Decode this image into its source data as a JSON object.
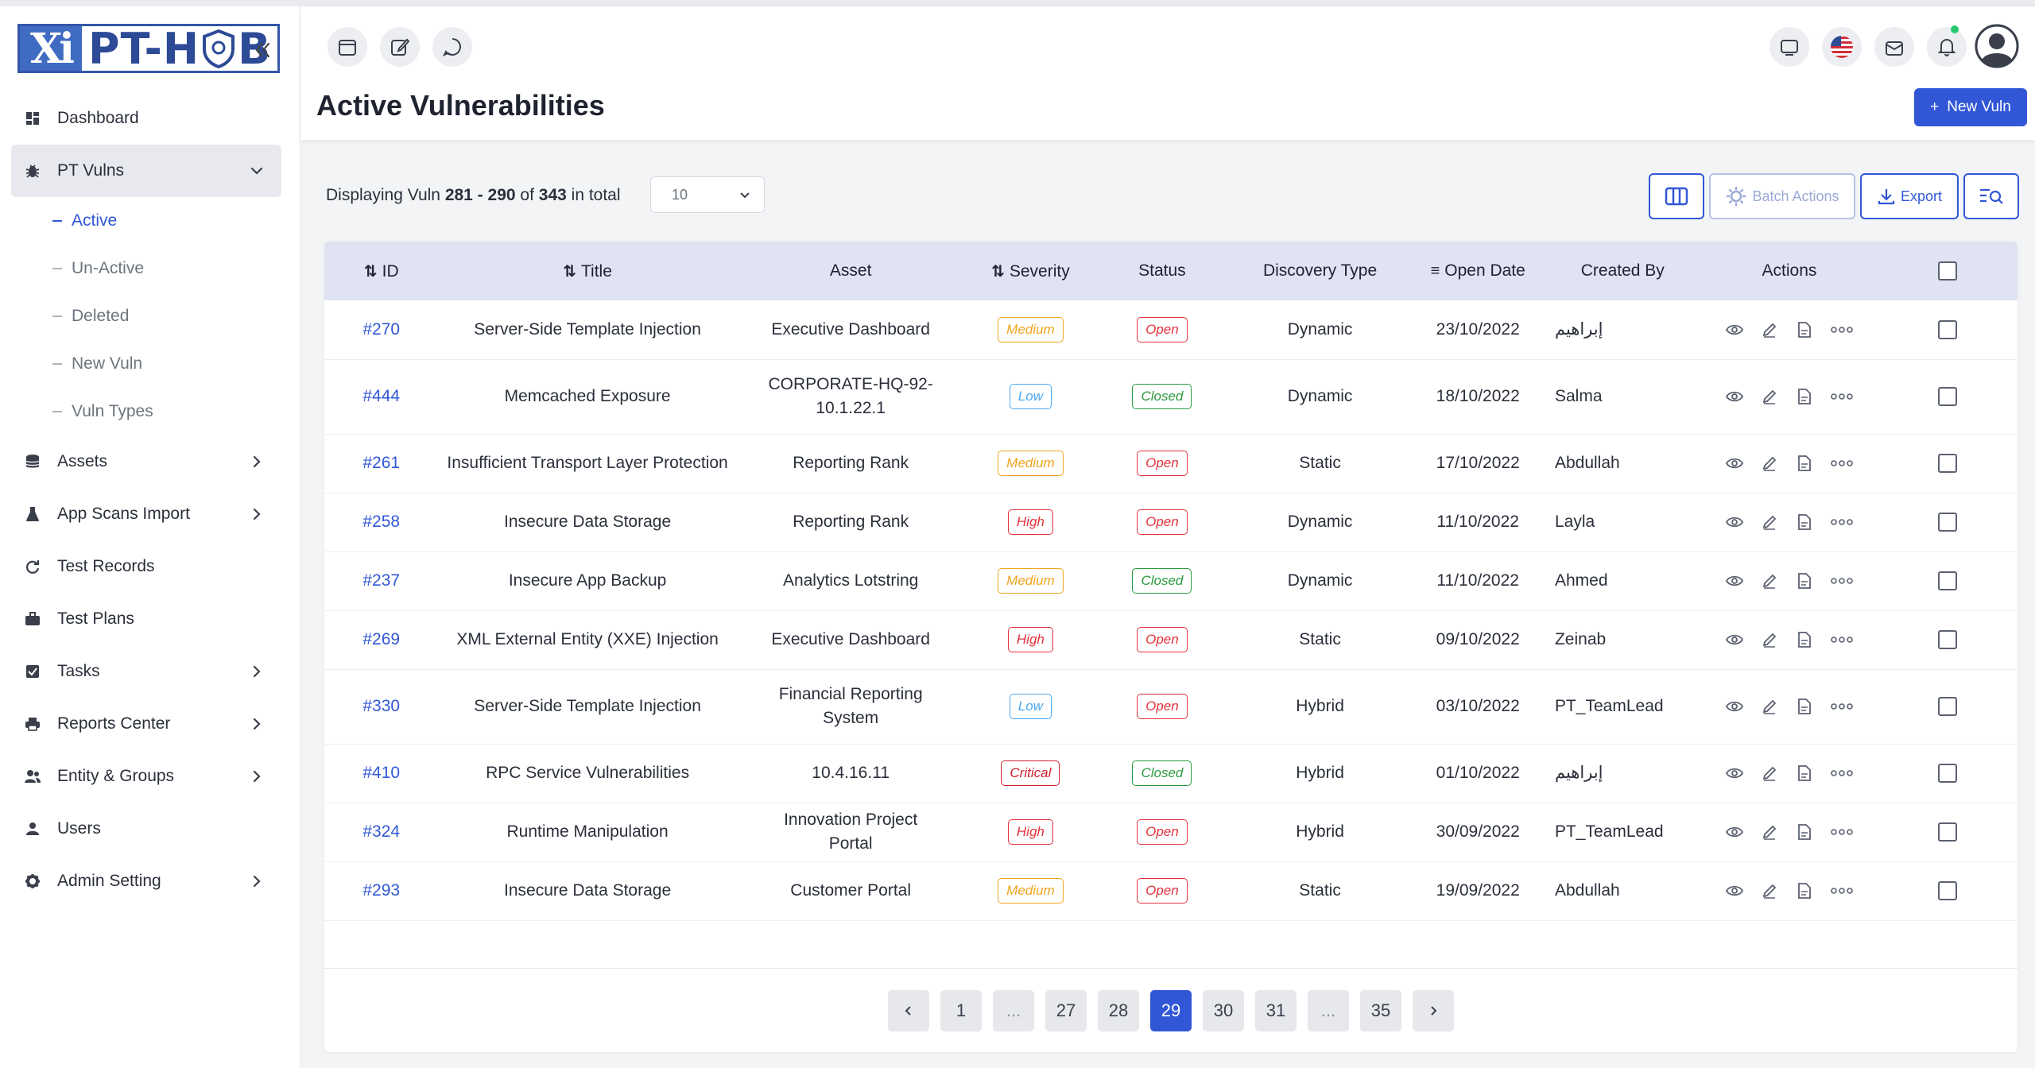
{
  "brand": {
    "logo_xi": "Xi",
    "logo_pt": "PT-H",
    "logo_b": "B"
  },
  "sidebar": {
    "items": [
      {
        "label": "Dashboard",
        "icon": "dashboard-icon"
      },
      {
        "label": "PT Vulns",
        "icon": "bug-icon",
        "open": true
      },
      {
        "label": "Assets",
        "icon": "database-icon"
      },
      {
        "label": "App Scans Import",
        "icon": "flask-icon"
      },
      {
        "label": "Test Records",
        "icon": "refresh-icon"
      },
      {
        "label": "Test Plans",
        "icon": "briefcase-icon"
      },
      {
        "label": "Tasks",
        "icon": "checkbox-icon"
      },
      {
        "label": "Reports Center",
        "icon": "printer-icon"
      },
      {
        "label": "Entity & Groups",
        "icon": "users-icon"
      },
      {
        "label": "Users",
        "icon": "user-icon"
      },
      {
        "label": "Admin Setting",
        "icon": "gear-icon"
      }
    ],
    "sub_items": [
      "Active",
      "Un-Active",
      "Deleted",
      "New Vuln",
      "Vuln Types"
    ]
  },
  "header": {
    "title": "Active Vulnerabilities",
    "new_button": "New Vuln"
  },
  "toolbar": {
    "displaying_prefix": "Displaying Vuln",
    "range": "281 - 290",
    "of": "of",
    "total": "343",
    "suffix": "in total",
    "page_size": "10",
    "batch_actions": "Batch Actions",
    "export": "Export"
  },
  "table": {
    "columns": {
      "id": "ID",
      "title": "Title",
      "asset": "Asset",
      "severity": "Severity",
      "status": "Status",
      "discovery": "Discovery Type",
      "open_date": "Open Date",
      "created_by": "Created By",
      "actions": "Actions"
    },
    "rows": [
      {
        "id": "#270",
        "title": "Server-Side Template Injection",
        "asset": "Executive Dashboard",
        "severity": "Medium",
        "status": "Open",
        "discovery": "Dynamic",
        "date": "23/10/2022",
        "created_by": "إبراهيم"
      },
      {
        "id": "#444",
        "title": "Memcached Exposure",
        "asset": "CORPORATE-HQ-92-10.1.22.1",
        "severity": "Low",
        "status": "Closed",
        "discovery": "Dynamic",
        "date": "18/10/2022",
        "created_by": "Salma"
      },
      {
        "id": "#261",
        "title": "Insufficient Transport Layer Protection",
        "asset": "Reporting Rank",
        "severity": "Medium",
        "status": "Open",
        "discovery": "Static",
        "date": "17/10/2022",
        "created_by": "Abdullah"
      },
      {
        "id": "#258",
        "title": "Insecure Data Storage",
        "asset": "Reporting Rank",
        "severity": "High",
        "status": "Open",
        "discovery": "Dynamic",
        "date": "11/10/2022",
        "created_by": "Layla"
      },
      {
        "id": "#237",
        "title": "Insecure App Backup",
        "asset": "Analytics Lotstring",
        "severity": "Medium",
        "status": "Closed",
        "discovery": "Dynamic",
        "date": "11/10/2022",
        "created_by": "Ahmed"
      },
      {
        "id": "#269",
        "title": "XML External Entity (XXE) Injection",
        "asset": "Executive Dashboard",
        "severity": "High",
        "status": "Open",
        "discovery": "Static",
        "date": "09/10/2022",
        "created_by": "Zeinab"
      },
      {
        "id": "#330",
        "title": "Server-Side Template Injection",
        "asset": "Financial Reporting System",
        "severity": "Low",
        "status": "Open",
        "discovery": "Hybrid",
        "date": "03/10/2022",
        "created_by": "PT_TeamLead"
      },
      {
        "id": "#410",
        "title": "RPC Service Vulnerabilities",
        "asset": "10.4.16.11",
        "severity": "Critical",
        "status": "Closed",
        "discovery": "Hybrid",
        "date": "01/10/2022",
        "created_by": "إبراهيم"
      },
      {
        "id": "#324",
        "title": "Runtime Manipulation",
        "asset": "Innovation Project Portal",
        "severity": "High",
        "status": "Open",
        "discovery": "Hybrid",
        "date": "30/09/2022",
        "created_by": "PT_TeamLead"
      },
      {
        "id": "#293",
        "title": "Insecure Data Storage",
        "asset": "Customer Portal",
        "severity": "Medium",
        "status": "Open",
        "discovery": "Static",
        "date": "19/09/2022",
        "created_by": "Abdullah"
      }
    ]
  },
  "pagination": {
    "pages": [
      "1",
      "...",
      "27",
      "28",
      "29",
      "30",
      "31",
      "...",
      "35"
    ],
    "current": "29"
  },
  "colors": {
    "accent": "#3157d6",
    "header_bg": "#dfe3f2"
  }
}
